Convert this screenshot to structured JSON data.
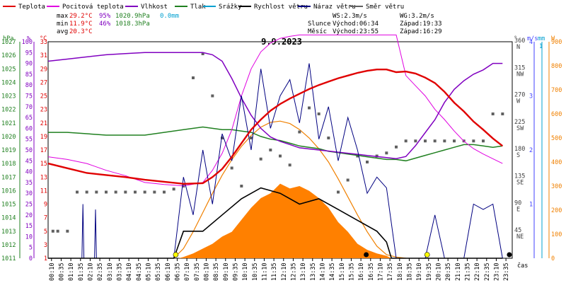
{
  "chart_data": {
    "type": "line",
    "title": "9.9.2023",
    "legend": [
      {
        "key": "temp",
        "name": "Teplota",
        "color": "#e00000"
      },
      {
        "key": "feels",
        "name": "Pocitová teplota",
        "color": "#e000e0"
      },
      {
        "key": "hum",
        "name": "Vlhkost",
        "color": "#8000c0"
      },
      {
        "key": "press",
        "name": "Tlak",
        "color": "#208020"
      },
      {
        "key": "rain",
        "name": "Srážky",
        "color": "#00a0d0"
      },
      {
        "key": "wind",
        "name": "Rychlost větru",
        "color": "#000000"
      },
      {
        "key": "gust",
        "name": "Náraz větru",
        "color": "#000080"
      },
      {
        "key": "dir",
        "name": "Směr větru",
        "color": "#606060"
      }
    ],
    "stats": {
      "max": {
        "label": "max",
        "temp": "29.2°C",
        "hum": "95%",
        "press": "1020.9hPa",
        "rain": "0.0mm"
      },
      "min": {
        "label": "min",
        "temp": "11.9°C",
        "hum": "46%",
        "press": "1018.3hPa"
      },
      "avg": {
        "label": "avg",
        "temp": "20.3°C"
      }
    },
    "wind_info": {
      "ws": "WS:2.3m/s",
      "wg": "WG:3.2m/s"
    },
    "sun": {
      "label": "Slunce",
      "rise": "Východ:06:34",
      "set": "Západ:19:33"
    },
    "moon": {
      "label": "Měsíc",
      "rise": "Východ:23:55",
      "set": "Západ:16:29"
    },
    "x_unit": "čas",
    "axes": {
      "hpa": {
        "label": "hPa",
        "ticks": [
          "1027",
          "1026",
          "1025",
          "1024",
          "1023",
          "1022",
          "1021",
          "1020",
          "1019",
          "1018",
          "1017",
          "1016",
          "1015",
          "1014",
          "1013",
          "1012",
          "1011"
        ]
      },
      "pct": {
        "label": "%",
        "ticks": [
          "100",
          "95",
          "90",
          "85",
          "80",
          "75",
          "70",
          "65",
          "60",
          "55",
          "50",
          "45",
          "40",
          "35",
          "30",
          "25",
          "20",
          "15",
          "10",
          "5",
          "0"
        ]
      },
      "degc": {
        "label": "°C",
        "ticks": [
          "33",
          "31",
          "29",
          "27",
          "25",
          "23",
          "21",
          "19",
          "17",
          "15",
          "13",
          "11",
          "9",
          "7",
          "5",
          "3",
          "1"
        ]
      },
      "deg": {
        "label": "°",
        "ticks": [
          "360",
          "315",
          "270",
          "225",
          "180",
          "135",
          "90",
          "45"
        ],
        "dirs": [
          "N",
          "NW",
          "W",
          "SW",
          "S",
          "SE",
          "E",
          "NE"
        ]
      },
      "ms": {
        "label": "m/s",
        "ticks": [
          "1",
          "2",
          "3",
          "4"
        ]
      },
      "mm": {
        "label": "mm",
        "ticks": [
          "1"
        ]
      },
      "w": {
        "label": "W",
        "ticks": [
          "900",
          "800",
          "700",
          "600",
          "500",
          "400",
          "300",
          "200",
          "100",
          "0"
        ]
      }
    },
    "x_ticks": [
      "00:10",
      "00:35",
      "01:10",
      "01:35",
      "02:10",
      "02:35",
      "03:10",
      "03:35",
      "04:10",
      "04:35",
      "05:10",
      "05:35",
      "06:10",
      "06:35",
      "07:10",
      "07:35",
      "08:10",
      "08:35",
      "09:10",
      "09:35",
      "10:10",
      "10:35",
      "11:10",
      "11:35",
      "12:10",
      "12:35",
      "13:10",
      "13:35",
      "14:10",
      "14:35",
      "15:10",
      "15:35",
      "16:10",
      "16:35",
      "17:10",
      "17:35",
      "18:10",
      "18:35",
      "19:10",
      "19:35",
      "20:10",
      "20:35",
      "21:10",
      "21:35",
      "22:10",
      "22:35",
      "23:10",
      "23:35"
    ],
    "series": {
      "temp": {
        "x": [
          0,
          2,
          4,
          6,
          8,
          10,
          12,
          14,
          16,
          17,
          18,
          19,
          20,
          21,
          22,
          23,
          24,
          25,
          26,
          27,
          28,
          29,
          30,
          31,
          32,
          33,
          34,
          35,
          36,
          37,
          38,
          39,
          40,
          41,
          42,
          43,
          44,
          45,
          46,
          47
        ],
        "y": [
          15,
          14.3,
          13.6,
          13.3,
          13,
          12.6,
          12.3,
          12,
          12.1,
          13,
          14.2,
          16,
          18,
          20,
          21.5,
          22.8,
          23.8,
          24.6,
          25.3,
          26,
          26.6,
          27.1,
          27.6,
          28,
          28.4,
          28.7,
          28.9,
          28.9,
          28.5,
          28.6,
          28.3,
          27.7,
          26.9,
          25.6,
          24,
          22.7,
          21.2,
          20,
          18.7,
          17.6
        ]
      },
      "feels": {
        "x": [
          0,
          2,
          4,
          6,
          8,
          10,
          12,
          14,
          16,
          17,
          18,
          19,
          20,
          21,
          22,
          23,
          24,
          25,
          26,
          27,
          28,
          29,
          30,
          31,
          32,
          33,
          34,
          35,
          36,
          37,
          38,
          39,
          40,
          41,
          42,
          43,
          44,
          45,
          46,
          47
        ],
        "y": [
          16,
          15.6,
          15,
          14,
          13.2,
          12.2,
          11.9,
          11.7,
          12.2,
          14,
          16.5,
          20,
          25,
          29,
          31.5,
          32.8,
          33.5,
          33.8,
          34,
          34,
          34,
          34,
          34,
          34,
          34,
          34,
          34,
          34,
          34,
          28,
          26.5,
          25,
          23,
          21.5,
          19.8,
          18.3,
          17.2,
          16.4,
          15.7,
          15
        ]
      },
      "hum": {
        "x": [
          0,
          2,
          4,
          6,
          8,
          10,
          12,
          14,
          16,
          17,
          18,
          19,
          20,
          21,
          22,
          23,
          24,
          25,
          26,
          27,
          28,
          29,
          30,
          31,
          32,
          33,
          34,
          35,
          36,
          37,
          38,
          39,
          40,
          41,
          42,
          43,
          44,
          45,
          46,
          47
        ],
        "y": [
          91,
          92,
          93,
          94,
          94.5,
          95,
          95,
          95,
          95,
          94,
          91,
          83,
          74,
          66,
          60,
          56,
          54,
          52.5,
          51,
          50.5,
          50,
          49.5,
          49,
          48.5,
          48,
          47.5,
          47,
          46.5,
          46,
          47,
          52,
          58,
          64,
          72,
          78,
          82,
          85,
          87,
          90,
          90
        ]
      },
      "press": {
        "x": [
          0,
          2,
          4,
          6,
          8,
          10,
          12,
          14,
          16,
          17,
          18,
          19,
          20,
          21,
          22,
          23,
          24,
          25,
          26,
          27,
          28,
          29,
          30,
          31,
          32,
          33,
          34,
          35,
          36,
          37,
          38,
          39,
          40,
          41,
          42,
          43,
          44,
          45,
          46,
          47
        ],
        "y": [
          1020.3,
          1020.3,
          1020.2,
          1020.1,
          1020.1,
          1020.1,
          1020.3,
          1020.5,
          1020.7,
          1020.6,
          1020.5,
          1020.5,
          1020.4,
          1020.3,
          1020.0,
          1019.8,
          1019.7,
          1019.5,
          1019.3,
          1019.2,
          1019.1,
          1018.9,
          1018.8,
          1018.7,
          1018.6,
          1018.5,
          1018.4,
          1018.3,
          1018.3,
          1018.2,
          1018.4,
          1018.6,
          1018.8,
          1019.0,
          1019.2,
          1019.4,
          1019.4,
          1019.3,
          1019.2,
          1019.3
        ]
      },
      "solar": {
        "x": [
          13.5,
          14,
          15,
          16,
          17,
          18,
          19,
          20,
          21,
          22,
          23,
          24,
          25,
          26,
          27,
          28,
          29,
          30,
          31,
          32,
          33,
          34,
          35,
          35.5
        ],
        "y": [
          0,
          5,
          20,
          40,
          60,
          90,
          110,
          160,
          210,
          250,
          270,
          310,
          290,
          300,
          280,
          250,
          210,
          150,
          110,
          60,
          35,
          20,
          10,
          0
        ]
      },
      "solar_clear": {
        "x": [
          13,
          14,
          15,
          16,
          17,
          18,
          19,
          20,
          21,
          22,
          23,
          24,
          25,
          26,
          27,
          28,
          29,
          30,
          31,
          32,
          33,
          34,
          35,
          36,
          37
        ],
        "y": [
          0,
          40,
          110,
          190,
          270,
          345,
          410,
          465,
          510,
          545,
          565,
          570,
          560,
          535,
          500,
          455,
          400,
          330,
          255,
          180,
          110,
          50,
          15,
          5,
          0
        ]
      },
      "wind": {
        "x": [
          0,
          13,
          14,
          16,
          18,
          20,
          22,
          24,
          26,
          28,
          30,
          32,
          34,
          35,
          35.5,
          36,
          47
        ],
        "y": [
          0,
          0,
          0.5,
          0.5,
          0.8,
          1.1,
          1.3,
          1.2,
          1.0,
          1.1,
          0.9,
          0.7,
          0.5,
          0.3,
          0,
          0,
          0
        ]
      },
      "gust": {
        "x": [
          0,
          3.5,
          3.6,
          3.7,
          4.8,
          4.9,
          5.0,
          13,
          14,
          15,
          16,
          17,
          18,
          19,
          20,
          21,
          22,
          23,
          24,
          25,
          26,
          27,
          28,
          29,
          30,
          31,
          32,
          33,
          34,
          35,
          36,
          37,
          38,
          39,
          40,
          41,
          42,
          43,
          44,
          45,
          46,
          47
        ],
        "y": [
          0,
          0,
          1.0,
          0,
          0,
          0.9,
          0,
          0,
          1.5,
          0.8,
          2.0,
          1.0,
          2.3,
          1.8,
          3.0,
          2.0,
          3.5,
          2.4,
          3.0,
          3.3,
          2.5,
          3.6,
          2.2,
          2.8,
          1.8,
          2.6,
          2.0,
          1.2,
          1.5,
          1.3,
          0,
          0,
          0,
          0,
          0.8,
          0,
          0,
          0,
          1.0,
          0.9,
          1.0,
          0
        ]
      },
      "dir_points": {
        "x": [
          0.5,
          1,
          2,
          3,
          4,
          5,
          6,
          7,
          8,
          9,
          10,
          11,
          12,
          13,
          14,
          15,
          16,
          17,
          18,
          19,
          20,
          21,
          22,
          23,
          24,
          25,
          26,
          27,
          28,
          29,
          30,
          31,
          32,
          33,
          34,
          35,
          36,
          37,
          38,
          39,
          40,
          41,
          42,
          43,
          44,
          45,
          46,
          47
        ],
        "y": [
          45,
          45,
          45,
          110,
          110,
          110,
          110,
          110,
          110,
          110,
          110,
          110,
          110,
          115,
          120,
          300,
          340,
          270,
          200,
          150,
          120,
          200,
          165,
          180,
          170,
          155,
          210,
          250,
          240,
          200,
          110,
          130,
          170,
          160,
          170,
          175,
          185,
          195,
          195,
          195,
          195,
          195,
          195,
          195,
          195,
          195,
          240,
          240
        ]
      }
    },
    "ylim_hpa": [
      1011,
      1027
    ],
    "ylim_pct": [
      0,
      100
    ],
    "ylim_degc": [
      1,
      33
    ],
    "ylim_deg": [
      0,
      360
    ],
    "ylim_ms": [
      0,
      4
    ],
    "ylim_w": [
      0,
      900
    ],
    "xlim": [
      0,
      48
    ],
    "grid": false
  }
}
